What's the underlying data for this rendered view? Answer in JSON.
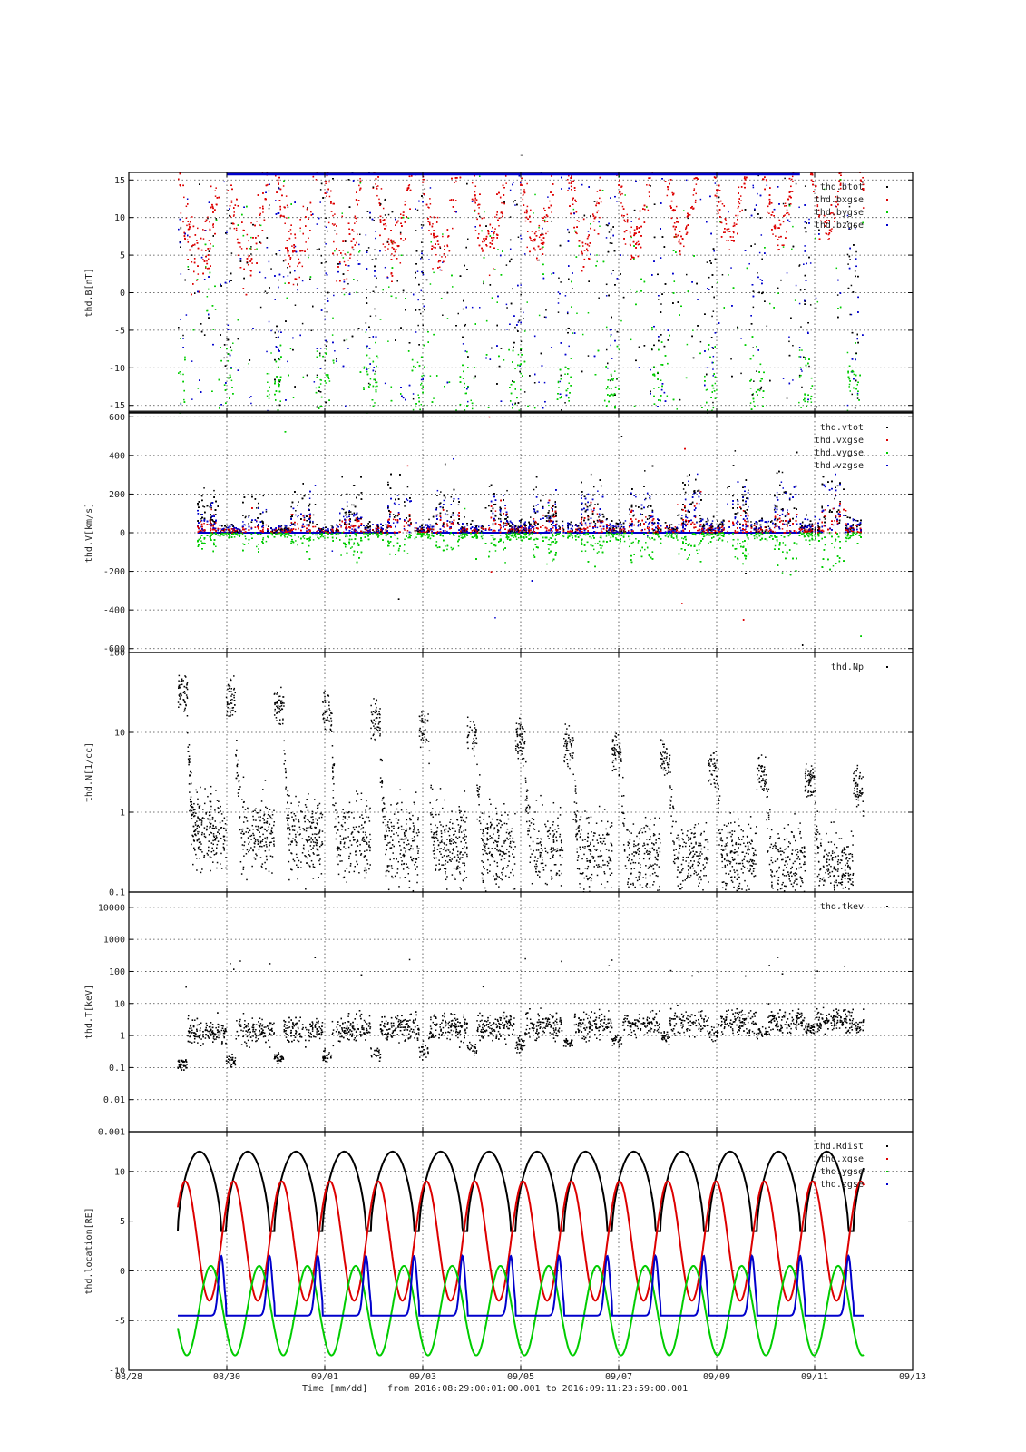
{
  "chart_data": {
    "title": "-",
    "x_axis": {
      "tick_labels": [
        "08/28",
        "08/30",
        "09/01",
        "09/03",
        "09/05",
        "09/07",
        "09/09",
        "09/11",
        "09/13"
      ],
      "label": "Time [mm/dd]",
      "range_text": "from 2016:08:29:00:01:00.001  to  2016:09:11:23:59:00.001"
    },
    "panels": [
      {
        "type": "scatter",
        "ylabel": "thd.B[nT]",
        "scale": "linear",
        "ylim": [
          -16,
          16
        ],
        "yticks": [
          15,
          10,
          5,
          0,
          -5,
          -10,
          -15
        ],
        "ytick_labels": [
          "15",
          "10",
          "5",
          "0",
          "-5",
          "-10",
          "-15"
        ],
        "series": [
          {
            "name": "thd.btot",
            "color": "#000000"
          },
          {
            "name": "thd.bxgse",
            "color": "#dd0000"
          },
          {
            "name": "thd.bygse",
            "color": "#00cc00"
          },
          {
            "name": "thd.bzgse",
            "color": "#0000cc"
          }
        ]
      },
      {
        "type": "scatter",
        "ylabel": "thd.V[km/s]",
        "scale": "linear",
        "ylim": [
          -620,
          620
        ],
        "yticks": [
          600,
          400,
          200,
          0,
          -200,
          -400,
          -600
        ],
        "ytick_labels": [
          "600",
          "400",
          "200",
          "0",
          "-200",
          "-400",
          "-600"
        ],
        "series": [
          {
            "name": "thd.vtot",
            "color": "#000000"
          },
          {
            "name": "thd.vxgse",
            "color": "#dd0000"
          },
          {
            "name": "thd.vygse",
            "color": "#00cc00"
          },
          {
            "name": "thd.vzgse",
            "color": "#0000cc"
          }
        ]
      },
      {
        "type": "scatter",
        "ylabel": "thd.N[1/cc]",
        "scale": "log",
        "ylim": [
          0.1,
          100
        ],
        "yticks": [
          100,
          10,
          1,
          0.1
        ],
        "ytick_labels": [
          "100",
          "10",
          "1",
          "0.1"
        ],
        "series": [
          {
            "name": "thd.Np",
            "color": "#000000"
          }
        ]
      },
      {
        "type": "scatter",
        "ylabel": "thd.T[keV]",
        "scale": "log",
        "ylim": [
          0.001,
          30000
        ],
        "yticks": [
          10000,
          1000,
          100,
          10,
          1,
          0.1,
          0.01,
          0.001
        ],
        "ytick_labels": [
          "10000",
          "1000",
          "100",
          "10",
          "1",
          "0.1",
          "0.01",
          "0.001"
        ],
        "series": [
          {
            "name": "thd.tkev",
            "color": "#000000"
          }
        ]
      },
      {
        "type": "line",
        "ylabel": "thd.location[RE]",
        "scale": "linear",
        "ylim": [
          -10,
          14
        ],
        "yticks": [
          10,
          5,
          0,
          -5,
          -10
        ],
        "ytick_labels": [
          "10",
          "5",
          "0",
          "-5",
          "-10"
        ],
        "series": [
          {
            "name": "thd.Rdist",
            "color": "#000000"
          },
          {
            "name": "thd.xgse",
            "color": "#dd0000"
          },
          {
            "name": "thd.ygse",
            "color": "#00cc00"
          },
          {
            "name": "thd.zgse",
            "color": "#0000cc"
          }
        ]
      }
    ],
    "grid": "dotted",
    "legend_position": "top-right",
    "data_range_days": [
      1.0,
      15.0
    ],
    "orbit_period_days": 0.985
  }
}
